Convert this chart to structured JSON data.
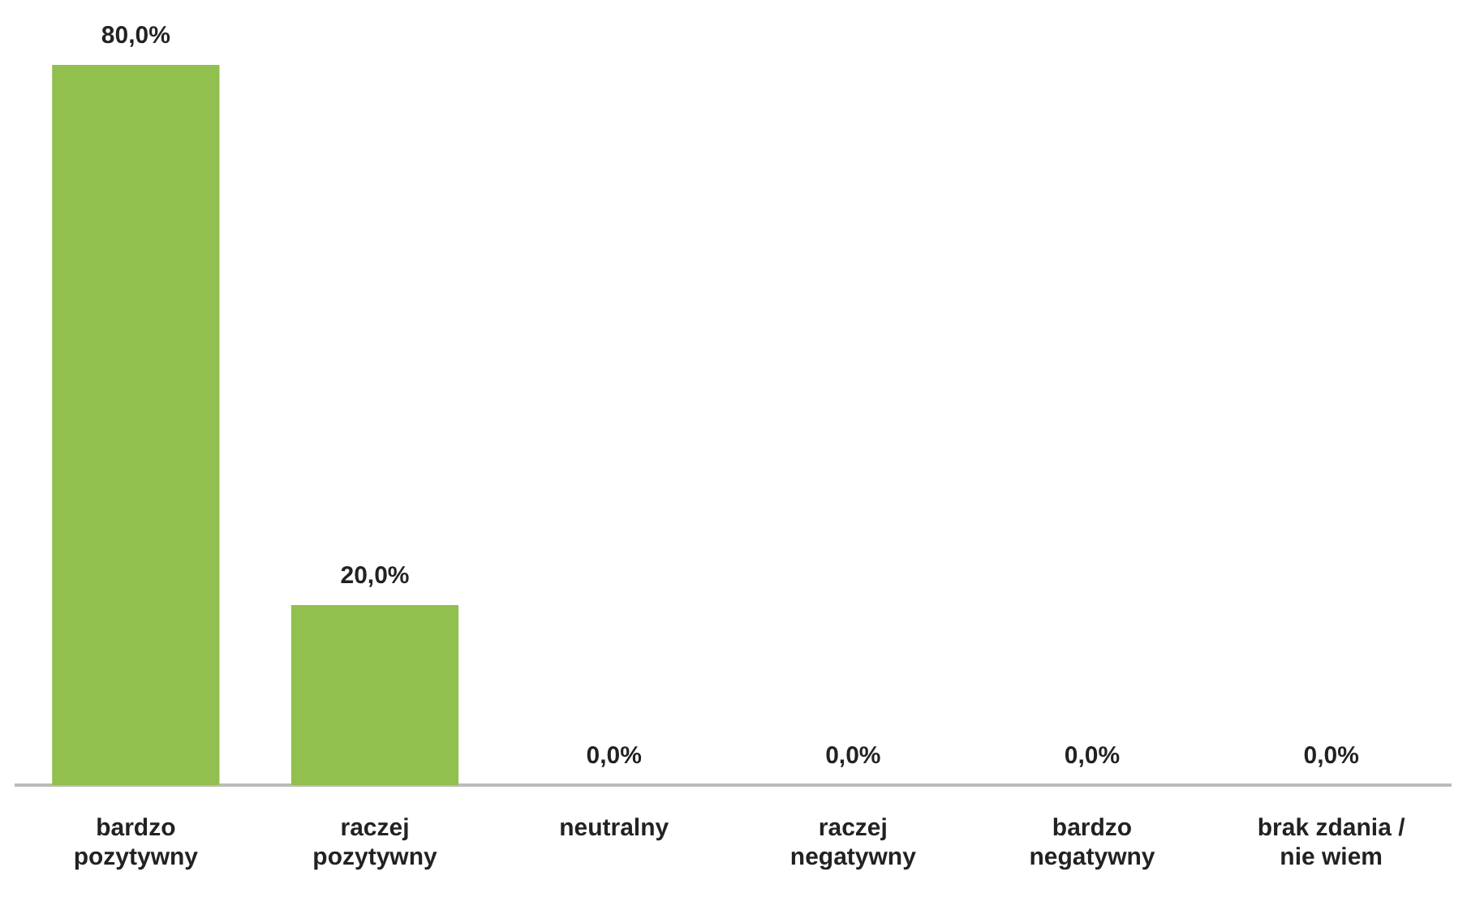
{
  "chart_data": {
    "type": "bar",
    "categories": [
      "bardzo pozytywny",
      "raczej pozytywny",
      "neutralny",
      "raczej negatywny",
      "bardzo negatywny",
      "brak zdania / nie wiem"
    ],
    "values": [
      80,
      20,
      0,
      0,
      0,
      0
    ],
    "value_labels": [
      "80,0%",
      "20,0%",
      "0,0%",
      "0,0%",
      "0,0%",
      "0,0%"
    ],
    "color": "#92c04f",
    "grid": false,
    "legend": false
  }
}
